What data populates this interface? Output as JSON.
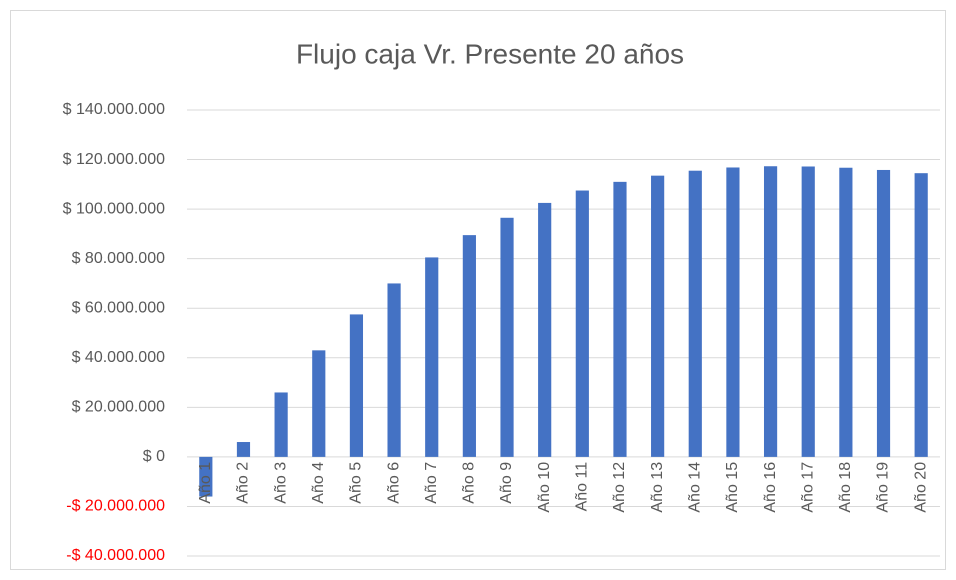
{
  "chart_data": {
    "type": "bar",
    "title": "Flujo caja Vr. Presente 20 años",
    "categories": [
      "Año 1",
      "Año 2",
      "Año 3",
      "Año 4",
      "Año 5",
      "Año 6",
      "Año 7",
      "Año 8",
      "Año 9",
      "Año 10",
      "Año 11",
      "Año 12",
      "Año 13",
      "Año 14",
      "Año 15",
      "Año 16",
      "Año 17",
      "Año 18",
      "Año 19",
      "Año 20"
    ],
    "values": [
      -16000000,
      6000000,
      26000000,
      43000000,
      57500000,
      70000000,
      80500000,
      89500000,
      96500000,
      102500000,
      107500000,
      111000000,
      113500000,
      115500000,
      116800000,
      117300000,
      117200000,
      116700000,
      115800000,
      114500000
    ],
    "color": "#4472c4",
    "ylim": [
      -40000000,
      140000000
    ],
    "yticks": [
      {
        "value": -40000000,
        "label": "-$ 40.000.000"
      },
      {
        "value": -20000000,
        "label": "-$ 20.000.000"
      },
      {
        "value": 0,
        "label": "$ 0"
      },
      {
        "value": 20000000,
        "label": "$ 20.000.000"
      },
      {
        "value": 40000000,
        "label": "$ 40.000.000"
      },
      {
        "value": 60000000,
        "label": "$ 60.000.000"
      },
      {
        "value": 80000000,
        "label": "$ 80.000.000"
      },
      {
        "value": 100000000,
        "label": "$ 100.000.000"
      },
      {
        "value": 120000000,
        "label": "$ 120.000.000"
      },
      {
        "value": 140000000,
        "label": "$ 140.000.000"
      }
    ],
    "grid": true
  }
}
